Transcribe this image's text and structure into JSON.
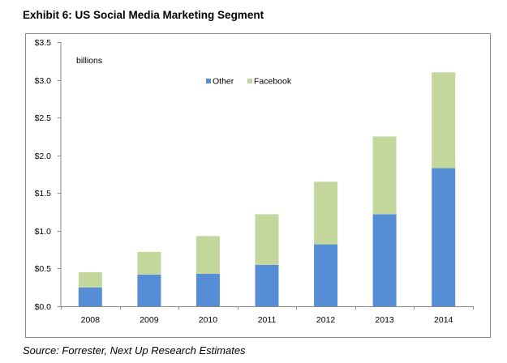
{
  "title": "Exhibit 6: US Social Media Marketing Segment",
  "source": "Source: Forrester, Next Up Research Estimates",
  "chart_data": {
    "type": "bar",
    "stacked": true,
    "title": "Exhibit 6: US Social Media Marketing Segment",
    "xlabel": "",
    "ylabel": "",
    "unit_annotation": "billions",
    "categories": [
      "2008",
      "2009",
      "2010",
      "2011",
      "2012",
      "2013",
      "2014"
    ],
    "series": [
      {
        "name": "Other",
        "color": "#558ED5",
        "values": [
          0.25,
          0.42,
          0.43,
          0.55,
          0.82,
          1.22,
          1.83
        ]
      },
      {
        "name": "Facebook",
        "color": "#C3D69B",
        "values": [
          0.2,
          0.3,
          0.5,
          0.67,
          0.83,
          1.03,
          1.27
        ]
      }
    ],
    "ylim": [
      0,
      3.5
    ],
    "yticks": [
      0,
      0.5,
      1.0,
      1.5,
      2.0,
      2.5,
      3.0,
      3.5
    ],
    "ytick_labels": [
      "$0.0",
      "$0.5",
      "$1.0",
      "$1.5",
      "$2.0",
      "$2.5",
      "$3.0",
      "$3.5"
    ],
    "grid": false,
    "legend": "top-center"
  }
}
